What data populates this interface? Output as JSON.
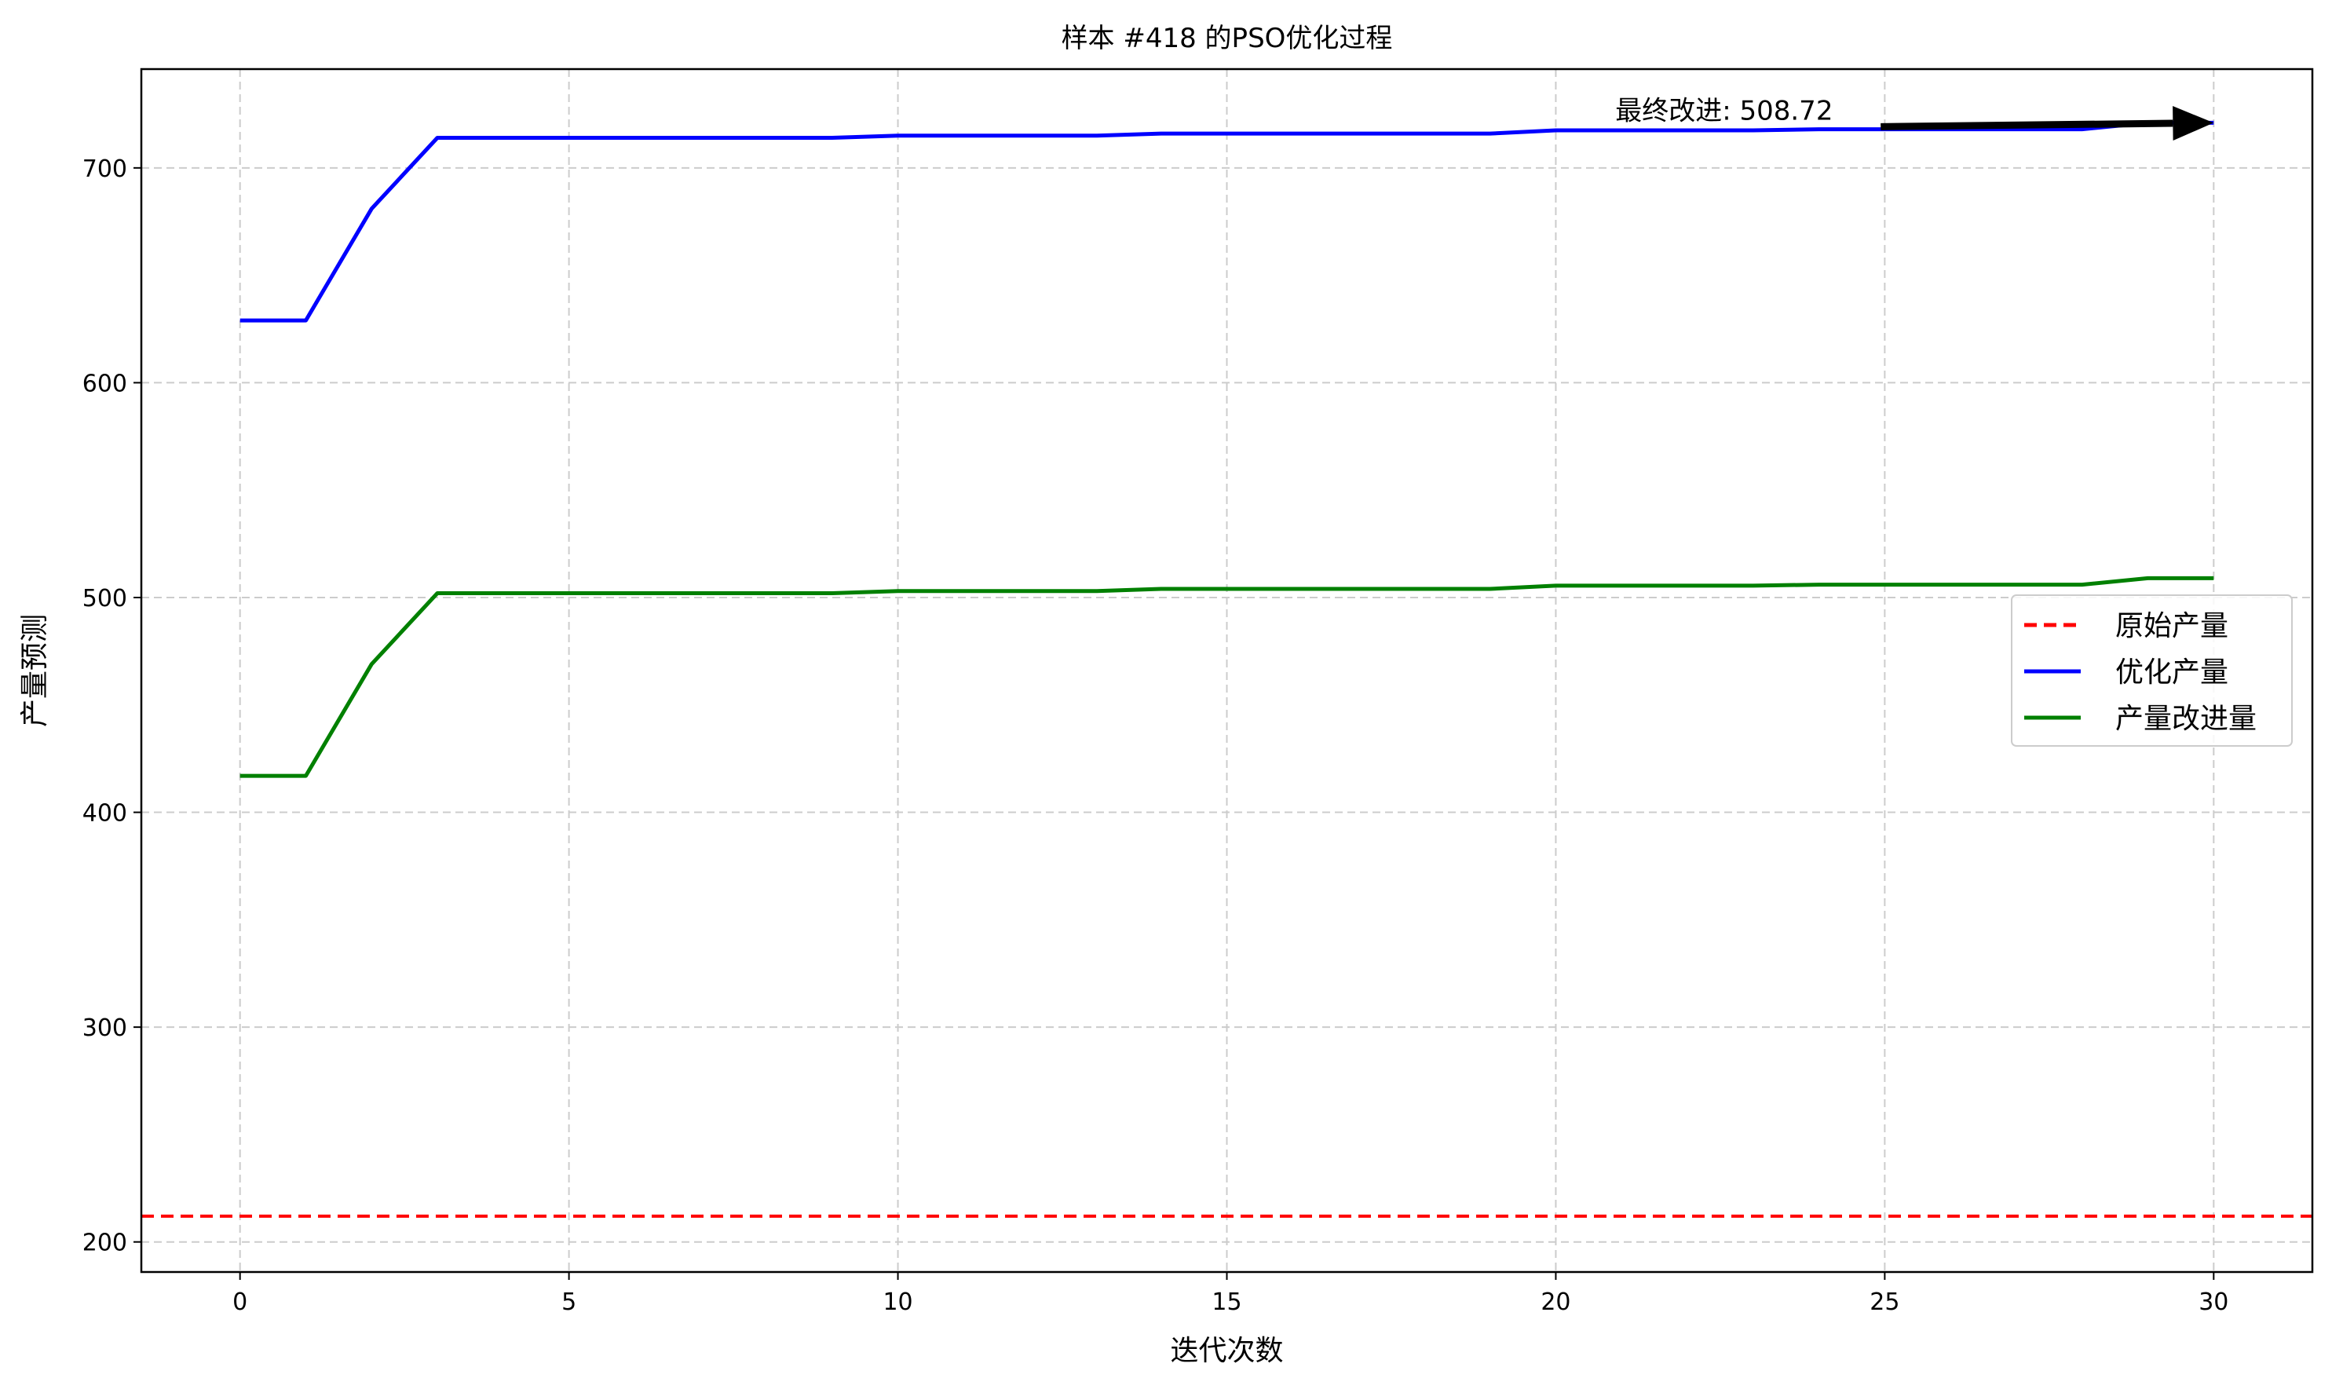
{
  "chart_data": {
    "type": "line",
    "title": "样本 #418 的PSO优化过程",
    "xlabel": "迭代次数",
    "ylabel": "产量预测",
    "xlim": [
      -1.5,
      31.5
    ],
    "ylim": [
      186,
      746
    ],
    "xticks": [
      0,
      5,
      10,
      15,
      20,
      25,
      30
    ],
    "yticks": [
      200,
      300,
      400,
      500,
      600,
      700
    ],
    "grid": true,
    "legend_position": "center-right",
    "x": [
      0,
      1,
      2,
      3,
      4,
      5,
      6,
      7,
      8,
      9,
      10,
      11,
      12,
      13,
      14,
      15,
      16,
      17,
      18,
      19,
      20,
      21,
      22,
      23,
      24,
      25,
      26,
      27,
      28,
      29,
      30
    ],
    "hlines": [
      {
        "name": "原始产量",
        "y": 212,
        "color": "#ff0000",
        "style": "dashed"
      }
    ],
    "series": [
      {
        "name": "优化产量",
        "color": "#0000ff",
        "values": [
          629,
          629,
          681,
          714,
          714,
          714,
          714,
          714,
          714,
          714,
          715,
          715,
          715,
          715,
          716,
          716,
          716,
          716,
          716,
          716,
          717.5,
          717.5,
          717.5,
          717.5,
          718,
          718,
          718,
          718,
          718,
          721,
          721
        ]
      },
      {
        "name": "产量改进量",
        "color": "#008000",
        "values": [
          417,
          417,
          469,
          502,
          502,
          502,
          502,
          502,
          502,
          502,
          503,
          503,
          503,
          503,
          504,
          504,
          504,
          504,
          504,
          504,
          505.5,
          505.5,
          505.5,
          505.5,
          506,
          506,
          506,
          506,
          506,
          509,
          509
        ]
      }
    ],
    "annotation": {
      "text": "最终改进: 508.72",
      "xy": [
        30,
        721
      ],
      "text_xy": [
        21,
        721
      ],
      "arrow_color": "#000000"
    }
  }
}
